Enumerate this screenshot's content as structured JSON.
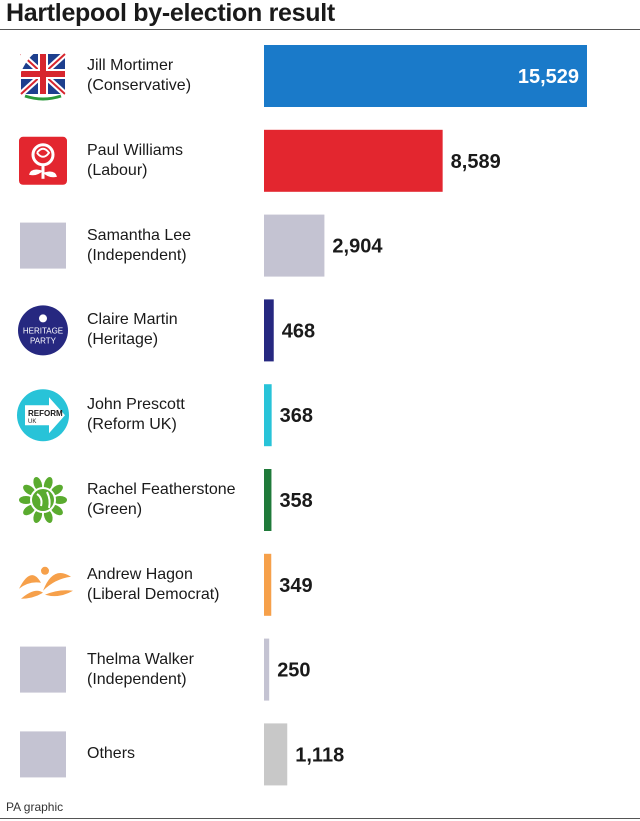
{
  "title": "Hartlepool by-election result",
  "credit": "PA graphic",
  "logos": {
    "heritage": [
      "HERITAGE",
      "PARTY"
    ],
    "reform": [
      "REFORM",
      "UK"
    ]
  },
  "chart_data": {
    "type": "bar",
    "orientation": "horizontal",
    "title": "Hartlepool by-election result",
    "categories": [
      {
        "name": "Jill Mortimer",
        "party": "(Conservative)",
        "icon": "conservative-logo-icon"
      },
      {
        "name": "Paul Williams",
        "party": "(Labour)",
        "icon": "labour-rose-icon"
      },
      {
        "name": "Samantha Lee",
        "party": "(Independent)",
        "icon": "grey-square-icon"
      },
      {
        "name": "Claire Martin",
        "party": "(Heritage)",
        "icon": "heritage-party-logo-icon"
      },
      {
        "name": "John Prescott",
        "party": "(Reform UK)",
        "icon": "reform-uk-logo-icon"
      },
      {
        "name": "Rachel Featherstone",
        "party": "(Green)",
        "icon": "green-party-logo-icon"
      },
      {
        "name": "Andrew Hagon",
        "party": "(Liberal Democrat)",
        "icon": "lib-dem-bird-icon"
      },
      {
        "name": "Thelma Walker",
        "party": "(Independent)",
        "icon": "grey-square-icon"
      },
      {
        "name": "Others",
        "party": "",
        "icon": "grey-square-icon"
      }
    ],
    "values": [
      15529,
      8589,
      2904,
      468,
      368,
      358,
      349,
      250,
      1118
    ],
    "value_labels": [
      "15,529",
      "8,589",
      "2,904",
      "468",
      "368",
      "358",
      "349",
      "250",
      "1,118"
    ],
    "colors": [
      "#1a7ac9",
      "#e3262f",
      "#c4c3d2",
      "#262880",
      "#28c3d8",
      "#1f7a3a",
      "#f6a04a",
      "#c4c3d2",
      "#c8c8c8"
    ],
    "label_inside": [
      true,
      false,
      false,
      false,
      false,
      false,
      false,
      false,
      false
    ],
    "xlim": [
      0,
      15529
    ],
    "grid": false,
    "legend": "none"
  }
}
